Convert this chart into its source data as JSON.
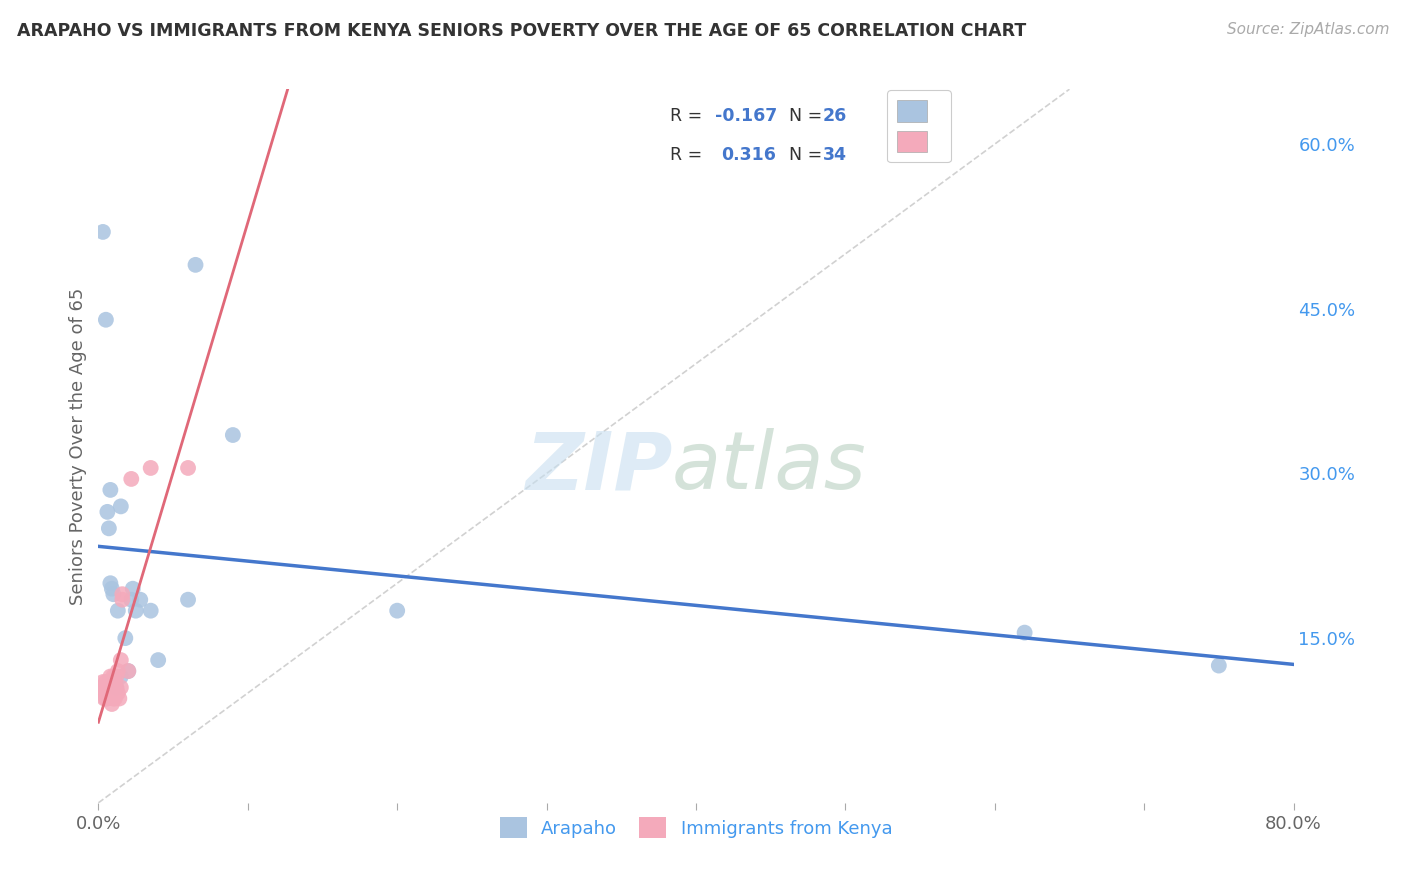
{
  "title": "ARAPAHO VS IMMIGRANTS FROM KENYA SENIORS POVERTY OVER THE AGE OF 65 CORRELATION CHART",
  "source": "Source: ZipAtlas.com",
  "ylabel": "Seniors Poverty Over the Age of 65",
  "xlim": [
    0.0,
    0.8
  ],
  "ylim": [
    0.0,
    0.65
  ],
  "xticks": [
    0.0,
    0.1,
    0.2,
    0.3,
    0.4,
    0.5,
    0.6,
    0.7,
    0.8
  ],
  "xticklabels": [
    "0.0%",
    "",
    "",
    "",
    "",
    "",
    "",
    "",
    "80.0%"
  ],
  "yticks_right": [
    0.0,
    0.15,
    0.3,
    0.45,
    0.6
  ],
  "yticklabels_right": [
    "",
    "15.0%",
    "30.0%",
    "45.0%",
    "60.0%"
  ],
  "arapaho_color": "#aac4e0",
  "kenya_color": "#f4aabb",
  "trendline_arapaho_color": "#4477cc",
  "trendline_kenya_color": "#e06878",
  "diag_color": "#cccccc",
  "grid_color": "#cccccc",
  "background_color": "#ffffff",
  "arapaho_x": [
    0.003,
    0.005,
    0.006,
    0.007,
    0.008,
    0.008,
    0.009,
    0.01,
    0.012,
    0.013,
    0.015,
    0.015,
    0.018,
    0.02,
    0.022,
    0.023,
    0.025,
    0.028,
    0.035,
    0.04,
    0.06,
    0.065,
    0.09,
    0.2,
    0.62,
    0.75
  ],
  "arapaho_y": [
    0.52,
    0.44,
    0.265,
    0.25,
    0.2,
    0.285,
    0.195,
    0.19,
    0.105,
    0.175,
    0.115,
    0.27,
    0.15,
    0.12,
    0.185,
    0.195,
    0.175,
    0.185,
    0.175,
    0.13,
    0.185,
    0.49,
    0.335,
    0.175,
    0.155,
    0.125
  ],
  "kenya_x": [
    0.002,
    0.003,
    0.004,
    0.004,
    0.004,
    0.005,
    0.005,
    0.005,
    0.005,
    0.006,
    0.006,
    0.007,
    0.007,
    0.008,
    0.008,
    0.009,
    0.01,
    0.01,
    0.01,
    0.011,
    0.011,
    0.012,
    0.012,
    0.013,
    0.013,
    0.014,
    0.015,
    0.015,
    0.016,
    0.016,
    0.02,
    0.022,
    0.035,
    0.06
  ],
  "kenya_y": [
    0.105,
    0.11,
    0.095,
    0.1,
    0.105,
    0.095,
    0.1,
    0.105,
    0.11,
    0.095,
    0.105,
    0.1,
    0.105,
    0.11,
    0.115,
    0.09,
    0.095,
    0.1,
    0.115,
    0.095,
    0.11,
    0.105,
    0.115,
    0.1,
    0.12,
    0.095,
    0.105,
    0.13,
    0.185,
    0.19,
    0.12,
    0.295,
    0.305,
    0.305
  ],
  "watermark_zip_color": "#c8dff0",
  "watermark_atlas_color": "#b8d0c0",
  "r_arapaho": "-0.167",
  "n_arapaho": "26",
  "r_kenya": "0.316",
  "n_kenya": "34"
}
